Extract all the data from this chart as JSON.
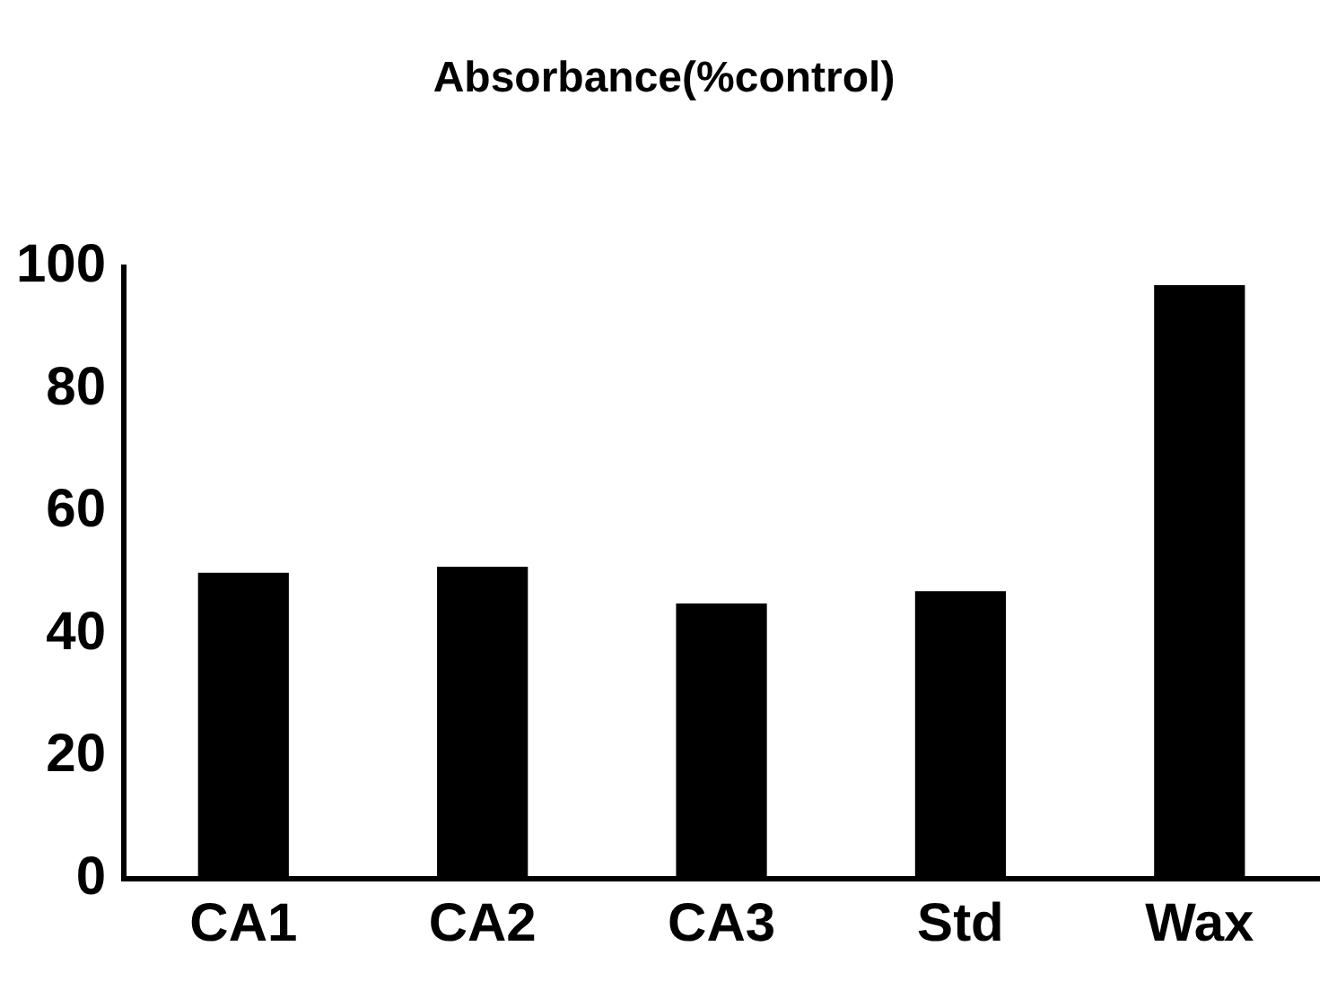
{
  "chart_data": {
    "type": "bar",
    "title": "Absorbance(%control)",
    "categories": [
      "CA1",
      "CA2",
      "CA3",
      "Std",
      "Wax"
    ],
    "values": [
      50,
      51,
      45,
      47,
      97
    ],
    "color": "#000000",
    "ylim": [
      0,
      100
    ],
    "yticks": [
      0,
      20,
      40,
      60,
      80,
      100
    ],
    "grid": false,
    "legend": false
  }
}
